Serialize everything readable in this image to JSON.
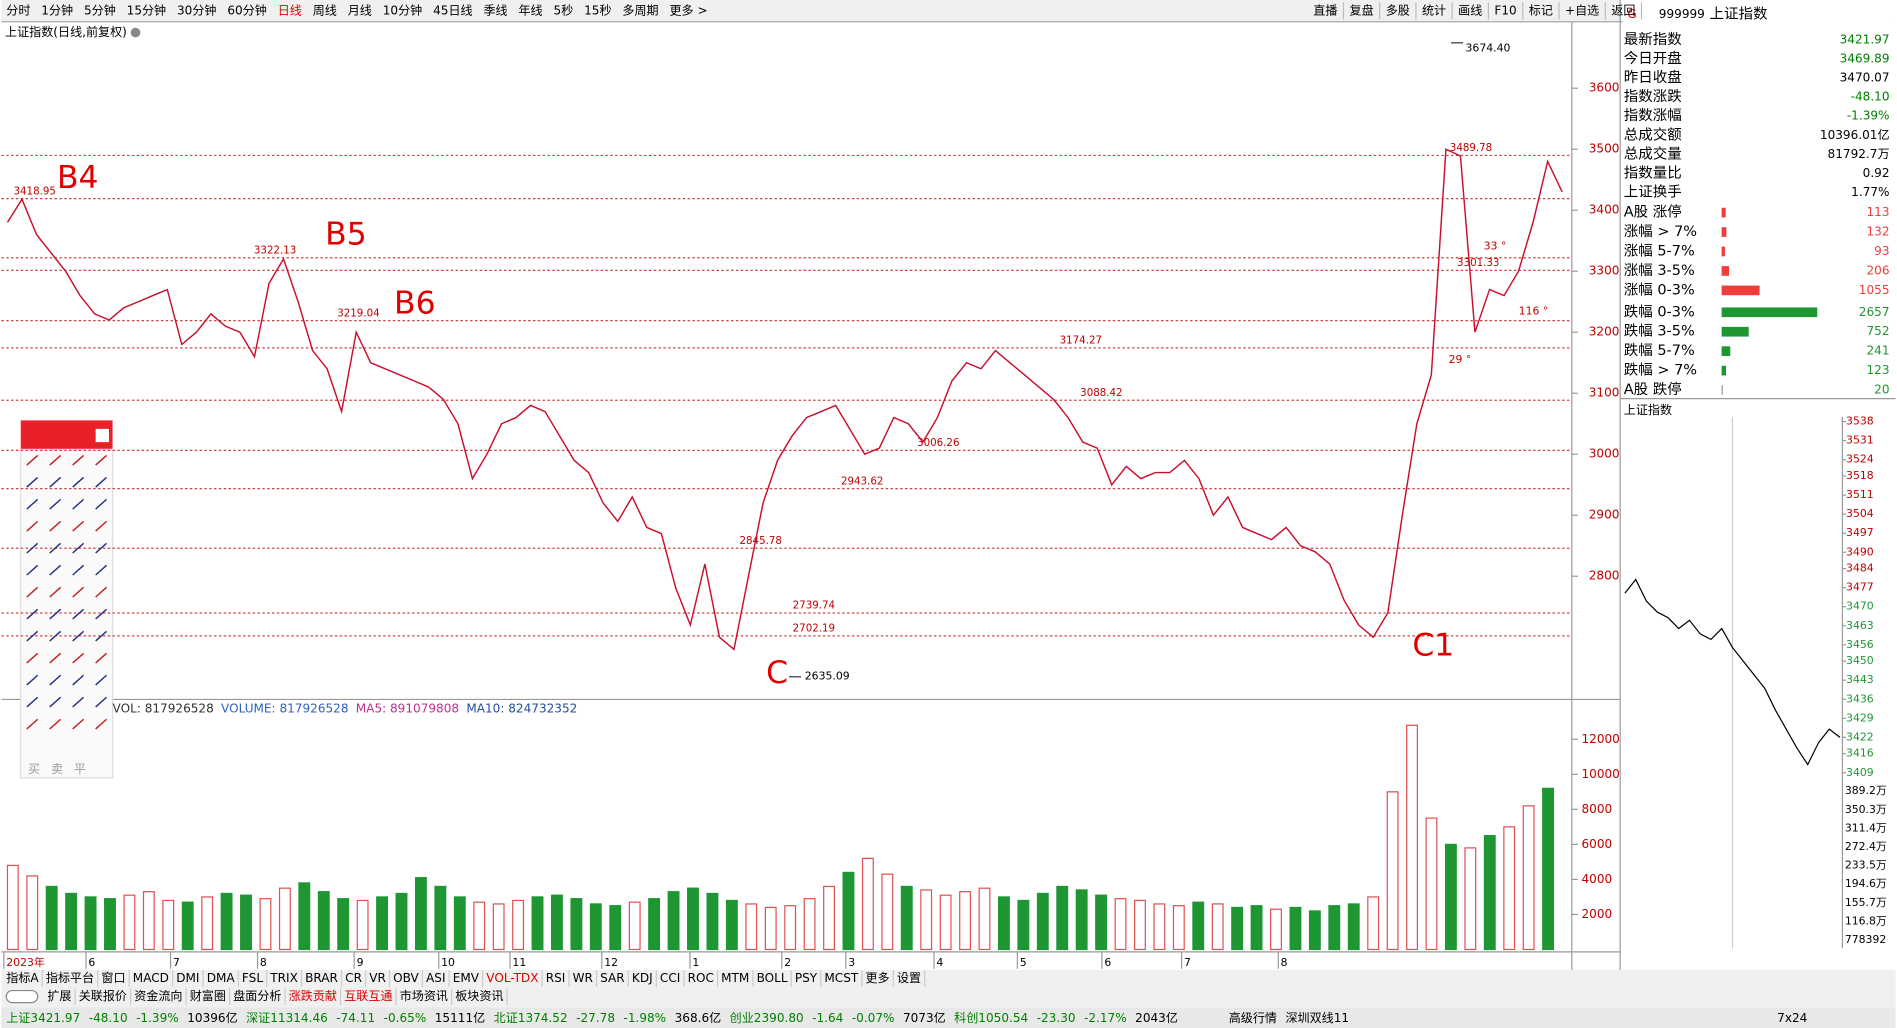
{
  "toolbar": {
    "periods": [
      {
        "text": "分时"
      },
      {
        "text": "1分钟"
      },
      {
        "text": "5分钟"
      },
      {
        "text": "15分钟"
      },
      {
        "text": "30分钟"
      },
      {
        "text": "60分钟"
      },
      {
        "text": "日线",
        "color": "#e00000"
      },
      {
        "text": "周线"
      },
      {
        "text": "月线"
      },
      {
        "text": "10分钟"
      },
      {
        "text": "45日线"
      },
      {
        "text": "季线"
      },
      {
        "text": "年线"
      },
      {
        "text": "5秒"
      },
      {
        "text": "15秒"
      },
      {
        "text": "多周期"
      },
      {
        "text": "更多 >"
      }
    ],
    "tools": [
      "直播",
      "复盘",
      "多股",
      "统计",
      "画线",
      "F10",
      "标记",
      "+自选",
      "返回"
    ]
  },
  "price_chart": {
    "type": "line",
    "title": "上证指数(日线,前复权)",
    "color": "#c8102e",
    "ylim": [
      2600,
      3705
    ],
    "yticks": [
      2800,
      2900,
      3000,
      3100,
      3200,
      3300,
      3400,
      3500,
      3600
    ],
    "values": [
      3380,
      3418,
      3360,
      3330,
      3300,
      3260,
      3230,
      3220,
      3240,
      3250,
      3260,
      3270,
      3180,
      3200,
      3230,
      3210,
      3200,
      3160,
      3280,
      3320,
      3250,
      3170,
      3140,
      3070,
      3200,
      3150,
      3140,
      3130,
      3120,
      3110,
      3090,
      3050,
      2960,
      3000,
      3050,
      3060,
      3080,
      3070,
      3030,
      2990,
      2970,
      2920,
      2890,
      2930,
      2880,
      2870,
      2780,
      2720,
      2820,
      2700,
      2680,
      2800,
      2920,
      2990,
      3030,
      3060,
      3070,
      3080,
      3040,
      3000,
      3010,
      3060,
      3050,
      3020,
      3060,
      3120,
      3150,
      3140,
      3170,
      3150,
      3130,
      3110,
      3090,
      3060,
      3020,
      3010,
      2950,
      2980,
      2960,
      2970,
      2970,
      2990,
      2960,
      2900,
      2930,
      2880,
      2870,
      2860,
      2880,
      2850,
      2840,
      2820,
      2760,
      2720,
      2700,
      2740,
      2900,
      3050,
      3130,
      3500,
      3489,
      3200,
      3270,
      3260,
      3300,
      3380,
      3480,
      3430
    ],
    "x_labels": [
      "2023年",
      "6",
      "7",
      "8",
      "9",
      "10",
      "11",
      "12",
      "1",
      "2",
      "3",
      "4",
      "5",
      "6",
      "7",
      "8"
    ],
    "levels": [
      3418.95,
      3322.13,
      3219.04,
      3174.27,
      3088.42,
      3006.26,
      2943.62,
      2845.78,
      2739.74,
      2702.19,
      3489.78,
      3301.33
    ],
    "high": {
      "value": 3674.4,
      "label": "3674.40"
    },
    "low": 2635.09,
    "annotations": [
      "B4",
      "B5",
      "B6",
      "C",
      "C1"
    ],
    "angles": [
      "33 °",
      "29 °",
      "116 °"
    ]
  },
  "volume_chart": {
    "type": "bar",
    "legend": [
      {
        "text": "VOL: 817926528",
        "color": "#333333"
      },
      {
        "text": "VOLUME: 817926528",
        "color": "#3060c0"
      },
      {
        "text": "MA5: 891079808",
        "color": "#c03090"
      },
      {
        "text": "MA10: 824732352",
        "color": "#2050a0"
      }
    ],
    "ylim": [
      0,
      14000
    ],
    "yticks": [
      2000,
      4000,
      6000,
      8000,
      10000,
      12000
    ],
    "values": [
      4800,
      4200,
      3600,
      3200,
      3000,
      2900,
      3100,
      3300,
      2800,
      2700,
      3000,
      3200,
      3100,
      2900,
      3500,
      3800,
      3300,
      2900,
      2800,
      3000,
      3200,
      4100,
      3600,
      3000,
      2700,
      2600,
      2800,
      3000,
      3100,
      2900,
      2600,
      2500,
      2700,
      2900,
      3300,
      3500,
      3200,
      2800,
      2600,
      2400,
      2500,
      2900,
      3600,
      4400,
      5200,
      4300,
      3600,
      3400,
      3100,
      3300,
      3500,
      3000,
      2800,
      3200,
      3600,
      3400,
      3100,
      2900,
      2800,
      2600,
      2500,
      2700,
      2600,
      2400,
      2500,
      2300,
      2400,
      2200,
      2500,
      2600,
      3000,
      9000,
      12800,
      7500,
      6000,
      5800,
      6500,
      7000,
      8200,
      9200
    ]
  },
  "quote": {
    "code": "999999",
    "name": "上证指数",
    "rows": [
      {
        "label": "最新指数",
        "value": 3421.97,
        "color": "#008000"
      },
      {
        "label": "今日开盘",
        "value": 3469.89,
        "color": "#008000"
      },
      {
        "label": "昨日收盘",
        "value": 3470.07,
        "color": "#000000"
      },
      {
        "label": "指数涨跌",
        "value": "-48.10",
        "color": "#008000"
      },
      {
        "label": "指数涨幅",
        "value": "-1.39%",
        "color": "#008000"
      },
      {
        "label": "总成交额",
        "value": "10396.01亿",
        "color": "#000000"
      },
      {
        "label": "总成交量",
        "value": "81792.7万",
        "color": "#000000"
      },
      {
        "label": "指数量比",
        "value": 0.92,
        "color": "#000000"
      },
      {
        "label": "上证换手",
        "value": "1.77%",
        "color": "#000000"
      }
    ],
    "breadth": [
      {
        "label": "A股 涨停",
        "value": 113,
        "color": "#f03c3c"
      },
      {
        "label": "涨幅 > 7%",
        "value": 132,
        "color": "#f03c3c"
      },
      {
        "label": "涨幅 5-7%",
        "value": 93,
        "color": "#f03c3c"
      },
      {
        "label": "涨幅 3-5%",
        "value": 206,
        "color": "#f03c3c"
      },
      {
        "label": "涨幅 0-3%",
        "value": 1055,
        "color": "#f03c3c"
      },
      {
        "label": "跌幅 0-3%",
        "value": 2657,
        "color": "#1e9632"
      },
      {
        "label": "跌幅 3-5%",
        "value": 752,
        "color": "#1e9632"
      },
      {
        "label": "跌幅 5-7%",
        "value": 241,
        "color": "#1e9632"
      },
      {
        "label": "跌幅 > 7%",
        "value": 123,
        "color": "#1e9632"
      },
      {
        "label": "A股 跌停",
        "value": 20,
        "color": "#999999"
      }
    ]
  },
  "intraday": {
    "type": "line",
    "title": "上证指数",
    "color": "#000000",
    "ylim": [
      3409,
      3538
    ],
    "yticks": [
      3538,
      3531,
      3524,
      3518,
      3511,
      3504,
      3497,
      3490,
      3484,
      3477,
      3470,
      3463,
      3456,
      3450,
      3443,
      3436,
      3429,
      3422,
      3416,
      3409
    ],
    "values": [
      3475,
      3480,
      3472,
      3468,
      3466,
      3462,
      3465,
      3460,
      3458,
      3462,
      3455,
      3450,
      3445,
      3440,
      3432,
      3425,
      3418,
      3412,
      3420,
      3425,
      3422
    ],
    "vol_labels": [
      "389.2万",
      "350.3万",
      "311.4万",
      "272.4万",
      "233.5万",
      "194.6万",
      "155.7万",
      "116.8万",
      "778392"
    ]
  },
  "palette": [
    "买",
    "卖",
    "平"
  ],
  "indicator_tabs": [
    {
      "text": "指标A"
    },
    {
      "text": "指标平台"
    },
    {
      "text": "窗口"
    },
    {
      "text": "MACD"
    },
    {
      "text": "DMI"
    },
    {
      "text": "DMA"
    },
    {
      "text": "FSL"
    },
    {
      "text": "TRIX"
    },
    {
      "text": "BRAR"
    },
    {
      "text": "CR"
    },
    {
      "text": "VR"
    },
    {
      "text": "OBV"
    },
    {
      "text": "ASI"
    },
    {
      "text": "EMV"
    },
    {
      "text": "VOL-TDX",
      "color": "#e00000"
    },
    {
      "text": "RSI"
    },
    {
      "text": "WR"
    },
    {
      "text": "SAR"
    },
    {
      "text": "KDJ"
    },
    {
      "text": "CCI"
    },
    {
      "text": "ROC"
    },
    {
      "text": "MTM"
    },
    {
      "text": "BOLL"
    },
    {
      "text": "PSY"
    },
    {
      "text": "MCST"
    },
    {
      "text": "更多"
    },
    {
      "text": "设置"
    }
  ],
  "info_tabs": [
    {
      "text": "扩展"
    },
    {
      "text": "关联报价"
    },
    {
      "text": "资金流向"
    },
    {
      "text": "财富圈"
    },
    {
      "text": "盘面分析"
    },
    {
      "text": "涨跌贡献",
      "color": "#e00000"
    },
    {
      "text": "互联互通",
      "color": "#e00000"
    },
    {
      "text": "市场资讯"
    },
    {
      "text": "板块资讯"
    }
  ],
  "status": [
    {
      "text": "上证3421.97",
      "color": "#008000"
    },
    {
      "text": "-48.10",
      "color": "#008000"
    },
    {
      "text": "-1.39%",
      "color": "#008000"
    },
    {
      "text": "10396亿"
    },
    {
      "text": "深证11314.46",
      "color": "#008000"
    },
    {
      "text": "-74.11",
      "color": "#008000"
    },
    {
      "text": "-0.65%",
      "color": "#008000"
    },
    {
      "text": "15111亿"
    },
    {
      "text": "北证1374.52",
      "color": "#008000"
    },
    {
      "text": "-27.78",
      "color": "#008000"
    },
    {
      "text": "-1.98%",
      "color": "#008000"
    },
    {
      "text": "368.6亿"
    },
    {
      "text": "创业2390.80",
      "color": "#008000"
    },
    {
      "text": "-1.64",
      "color": "#008000"
    },
    {
      "text": "-0.07%",
      "color": "#008000"
    },
    {
      "text": "7073亿"
    },
    {
      "text": "科创1050.54",
      "color": "#008000"
    },
    {
      "text": "-23.30",
      "color": "#008000"
    },
    {
      "text": "-2.17%",
      "color": "#008000"
    },
    {
      "text": "2043亿"
    },
    {
      "text": "高级行情"
    },
    {
      "text": "深圳双线11"
    },
    {
      "text": "7x24"
    }
  ]
}
